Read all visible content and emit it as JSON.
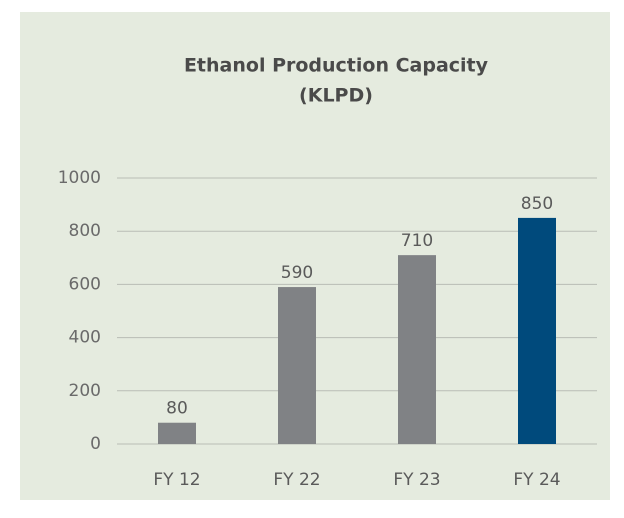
{
  "chart_data": {
    "type": "bar",
    "title": "Ethanol Production Capacity",
    "subtitle": "(KLPD)",
    "categories": [
      "FY 12",
      "FY 22",
      "FY 23",
      "FY 24"
    ],
    "values": [
      80,
      590,
      710,
      850
    ],
    "colors": [
      "#808285",
      "#808285",
      "#808285",
      "#004a7c"
    ],
    "ylim": [
      0,
      1000
    ],
    "yticks": [
      0,
      200,
      400,
      600,
      800,
      1000
    ],
    "grid": true
  }
}
